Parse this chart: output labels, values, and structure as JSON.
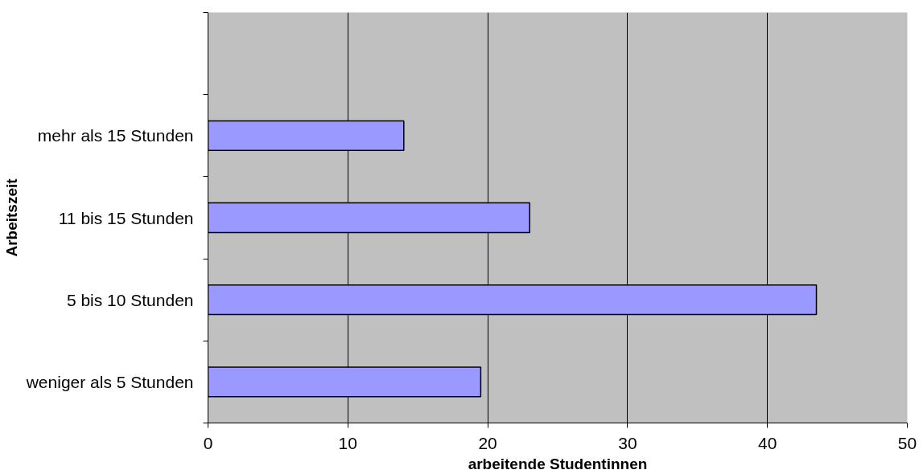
{
  "chart_data": {
    "type": "bar",
    "orientation": "horizontal",
    "categories": [
      null,
      "mehr als 15 Stunden",
      "11 bis 15 Stunden",
      "5 bis 10 Stunden",
      "weniger als 5 Stunden"
    ],
    "series": [
      {
        "color": "#9999ff",
        "values": [
          null,
          14,
          23,
          43.5,
          19.5
        ]
      }
    ],
    "xlabel": "arbeitende Studentinnen",
    "ylabel": "Arbeitszeit",
    "xlim": [
      0,
      50
    ],
    "xticks": [
      0,
      10,
      20,
      30,
      40,
      50
    ],
    "grid": "x"
  }
}
